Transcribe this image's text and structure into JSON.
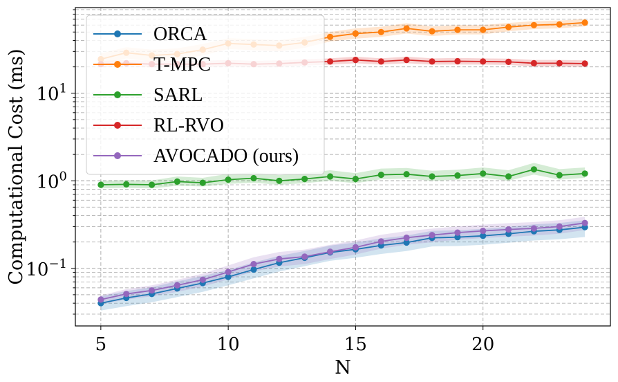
{
  "chart_data": {
    "type": "line",
    "title": "",
    "xlabel": "N",
    "ylabel": "Computational Cost (ms)",
    "yscale": "log",
    "xlim": [
      4,
      25
    ],
    "ylim": [
      0.022,
      95
    ],
    "grid": true,
    "legend_position": "top-left",
    "xticks": [
      5,
      10,
      15,
      20
    ],
    "xtick_labels": [
      "5",
      "10",
      "15",
      "20"
    ],
    "yticks": [
      {
        "value": 0.1,
        "base": "10",
        "exp": "−1"
      },
      {
        "value": 1,
        "base": "10",
        "exp": "0"
      },
      {
        "value": 10,
        "base": "10",
        "exp": "1"
      }
    ],
    "x": [
      5,
      6,
      7,
      8,
      9,
      10,
      11,
      12,
      13,
      14,
      15,
      16,
      17,
      18,
      19,
      20,
      21,
      22,
      23,
      24
    ],
    "series": [
      {
        "name": "ORCA",
        "color": "#1f77b4",
        "values": [
          0.04,
          0.046,
          0.051,
          0.059,
          0.068,
          0.08,
          0.097,
          0.116,
          0.132,
          0.152,
          0.165,
          0.183,
          0.197,
          0.223,
          0.227,
          0.235,
          0.248,
          0.265,
          0.275,
          0.295
        ],
        "lower": [
          0.033,
          0.037,
          0.041,
          0.047,
          0.054,
          0.064,
          0.077,
          0.092,
          0.106,
          0.122,
          0.132,
          0.146,
          0.158,
          0.178,
          0.18,
          0.186,
          0.196,
          0.208,
          0.215,
          0.228
        ],
        "upper": [
          0.048,
          0.055,
          0.061,
          0.071,
          0.082,
          0.096,
          0.117,
          0.139,
          0.158,
          0.182,
          0.198,
          0.22,
          0.237,
          0.268,
          0.272,
          0.282,
          0.298,
          0.318,
          0.33,
          0.355
        ]
      },
      {
        "name": "T-MPC",
        "color": "#ff7f0e",
        "values": [
          24.5,
          29.0,
          27.0,
          28.0,
          31.5,
          37.0,
          36.0,
          35.0,
          38.0,
          44.0,
          48.0,
          50.0,
          55.0,
          51.0,
          53.0,
          53.0,
          57.0,
          60.0,
          61.0,
          64.0
        ],
        "lower": [
          21.0,
          25.0,
          23.0,
          24.0,
          27.0,
          32.0,
          31.0,
          30.0,
          33.0,
          39.0,
          42.0,
          44.0,
          48.0,
          45.0,
          47.0,
          47.0,
          51.0,
          54.0,
          55.0,
          58.0
        ],
        "upper": [
          28.5,
          33.5,
          31.5,
          32.5,
          36.5,
          42.5,
          41.5,
          40.5,
          44.0,
          50.0,
          55.0,
          57.5,
          63.0,
          58.0,
          60.0,
          60.0,
          63.5,
          66.5,
          67.5,
          70.5
        ]
      },
      {
        "name": "SARL",
        "color": "#2ca02c",
        "values": [
          0.9,
          0.91,
          0.9,
          0.98,
          0.95,
          1.03,
          1.07,
          1.0,
          1.05,
          1.12,
          1.05,
          1.17,
          1.19,
          1.12,
          1.15,
          1.21,
          1.12,
          1.35,
          1.16,
          1.21
        ],
        "lower": [
          0.82,
          0.83,
          0.82,
          0.88,
          0.86,
          0.92,
          0.95,
          0.9,
          0.94,
          1.0,
          0.94,
          1.04,
          1.06,
          1.0,
          1.03,
          1.08,
          1.0,
          1.18,
          1.03,
          1.08
        ],
        "upper": [
          1.0,
          1.02,
          1.01,
          1.12,
          1.08,
          1.2,
          1.25,
          1.16,
          1.22,
          1.32,
          1.22,
          1.38,
          1.4,
          1.3,
          1.34,
          1.42,
          1.32,
          1.6,
          1.36,
          1.42
        ]
      },
      {
        "name": "RL-RVO",
        "color": "#d62728",
        "values": [
          21.5,
          22.0,
          21.5,
          21.5,
          21.5,
          22.0,
          21.5,
          21.8,
          22.5,
          23.0,
          24.0,
          23.0,
          24.0,
          23.0,
          23.2,
          23.0,
          22.8,
          22.0,
          22.0,
          21.8
        ],
        "lower": [
          19.8,
          20.2,
          19.8,
          19.8,
          19.8,
          20.2,
          19.8,
          20.0,
          20.7,
          21.2,
          22.0,
          21.2,
          22.0,
          21.2,
          21.3,
          21.2,
          21.0,
          20.2,
          20.2,
          20.0
        ],
        "upper": [
          23.4,
          24.0,
          23.4,
          23.4,
          23.4,
          24.0,
          23.4,
          23.7,
          24.5,
          25.0,
          26.2,
          25.0,
          26.2,
          25.0,
          25.3,
          25.0,
          24.8,
          24.0,
          24.0,
          23.7
        ]
      },
      {
        "name": "AVOCADO (ours)",
        "color": "#9467bd",
        "values": [
          0.044,
          0.051,
          0.056,
          0.064,
          0.074,
          0.091,
          0.112,
          0.128,
          0.136,
          0.155,
          0.174,
          0.203,
          0.224,
          0.24,
          0.256,
          0.268,
          0.278,
          0.286,
          0.3,
          0.33
        ],
        "lower": [
          0.039,
          0.044,
          0.048,
          0.054,
          0.062,
          0.075,
          0.092,
          0.105,
          0.112,
          0.128,
          0.144,
          0.168,
          0.186,
          0.199,
          0.212,
          0.222,
          0.23,
          0.237,
          0.249,
          0.274
        ],
        "upper": [
          0.049,
          0.058,
          0.064,
          0.074,
          0.087,
          0.108,
          0.134,
          0.154,
          0.164,
          0.186,
          0.208,
          0.242,
          0.266,
          0.284,
          0.302,
          0.316,
          0.328,
          0.338,
          0.354,
          0.388
        ]
      }
    ]
  }
}
